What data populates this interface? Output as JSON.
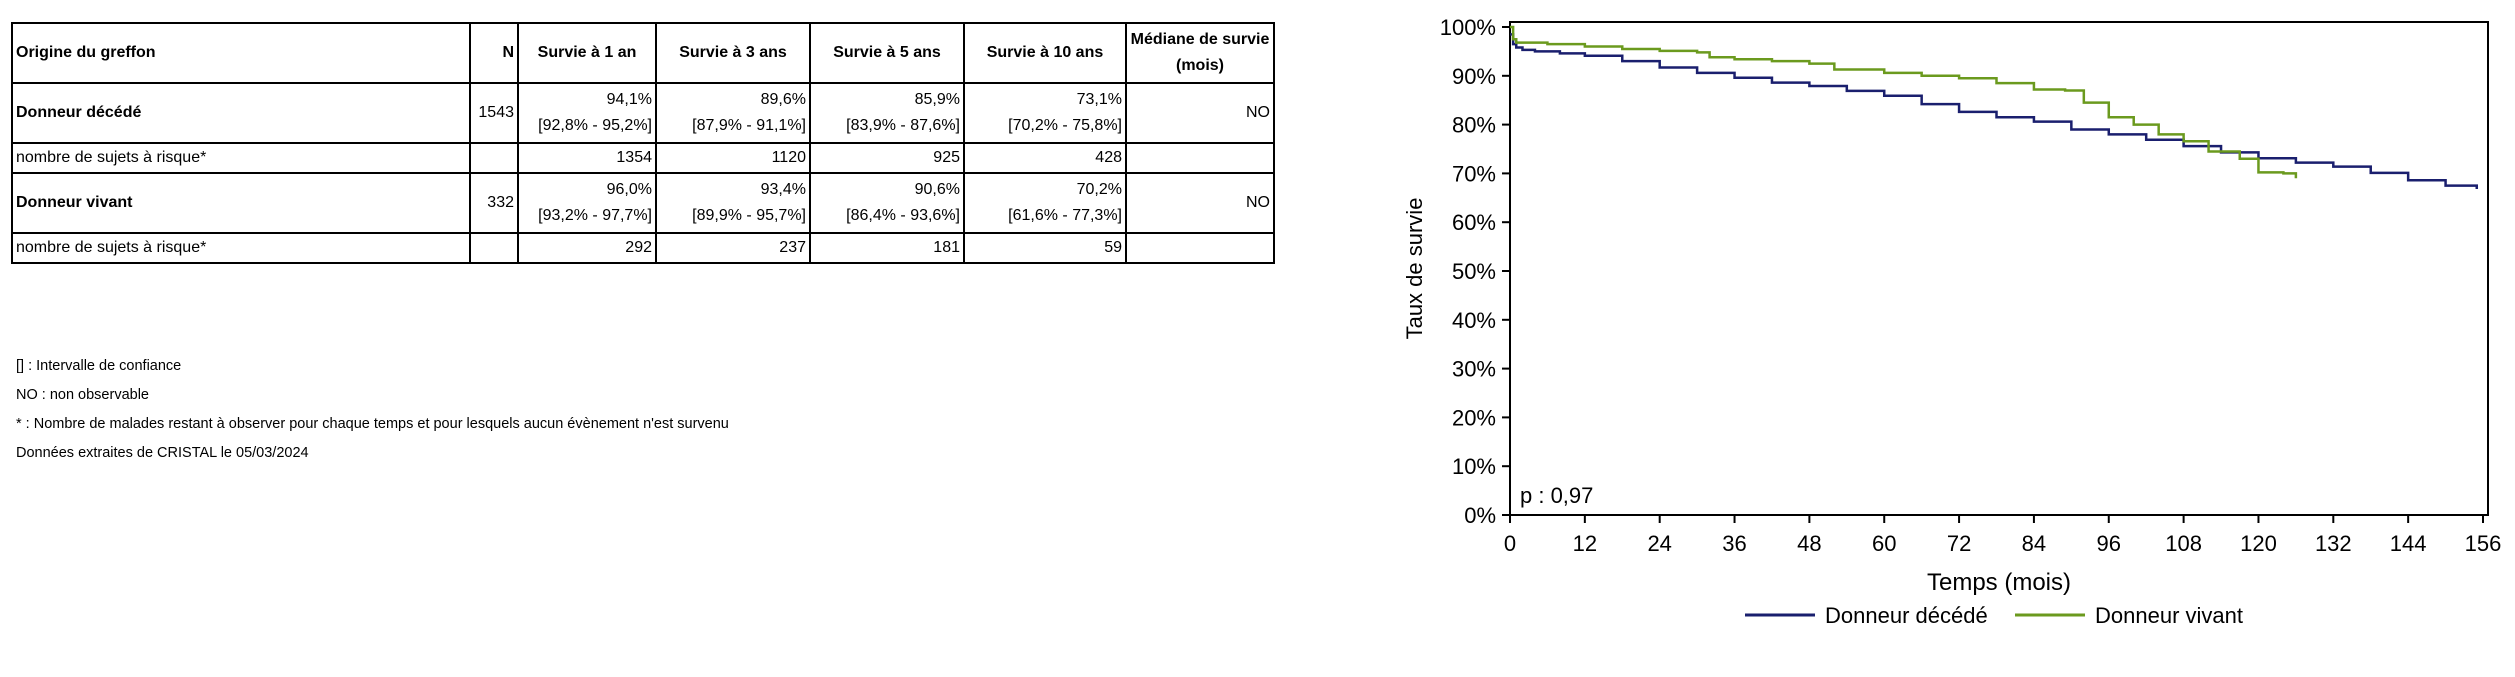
{
  "table": {
    "headers": [
      "Origine du greffon",
      "N",
      "Survie à 1 an",
      "Survie à 3 ans",
      "Survie à 5 ans",
      "Survie à 10 ans",
      "Médiane de survie (mois)"
    ],
    "rows": [
      {
        "label": "Donneur décédé",
        "n": "1543",
        "s1": "94,1%",
        "ci1": "[92,8% - 95,2%]",
        "s3": "89,6%",
        "ci3": "[87,9% - 91,1%]",
        "s5": "85,9%",
        "ci5": "[83,9% - 87,6%]",
        "s10": "73,1%",
        "ci10": "[70,2% - 75,8%]",
        "median": "NO"
      },
      {
        "label": "nombre de sujets à risque*",
        "r1": "1354",
        "r3": "1120",
        "r5": "925",
        "r10": "428"
      },
      {
        "label": "Donneur vivant",
        "n": "332",
        "s1": "96,0%",
        "ci1": "[93,2% - 97,7%]",
        "s3": "93,4%",
        "ci3": "[89,9% - 95,7%]",
        "s5": "90,6%",
        "ci5": "[86,4% - 93,6%]",
        "s10": "70,2%",
        "ci10": "[61,6% - 77,3%]",
        "median": "NO"
      },
      {
        "label": "nombre de sujets à risque*",
        "r1": "292",
        "r3": "237",
        "r5": "181",
        "r10": "59"
      }
    ]
  },
  "notes": [
    "[] : Intervalle de confiance",
    "NO : non observable",
    "* : Nombre de malades restant à observer pour chaque temps et pour lesquels aucun évènement n'est survenu",
    "Données extraites de CRISTAL le 05/03/2024"
  ],
  "chart_data": {
    "type": "line",
    "title": "",
    "xlabel": "Temps (mois)",
    "ylabel": "Taux de survie",
    "xlim": [
      0,
      156
    ],
    "ylim": [
      0,
      100
    ],
    "x_ticks": [
      0,
      12,
      24,
      36,
      48,
      60,
      72,
      84,
      96,
      108,
      120,
      132,
      144,
      156
    ],
    "y_ticks": [
      0,
      10,
      20,
      30,
      40,
      50,
      60,
      70,
      80,
      90,
      100
    ],
    "y_tick_labels": [
      "0%",
      "10%",
      "20%",
      "30%",
      "40%",
      "50%",
      "60%",
      "70%",
      "80%",
      "90%",
      "100%"
    ],
    "annotation": "p : 0,97",
    "legend_position": "bottom",
    "series": [
      {
        "name": "Donneur décédé",
        "color": "#1a1f6e",
        "x": [
          0,
          0.5,
          1,
          2,
          4,
          8,
          12,
          18,
          24,
          30,
          36,
          42,
          48,
          54,
          60,
          66,
          72,
          78,
          84,
          90,
          96,
          102,
          108,
          114,
          120,
          126,
          132,
          138,
          144,
          150,
          155
        ],
        "y": [
          98.5,
          96.5,
          95.8,
          95.3,
          95.0,
          94.6,
          94.1,
          93.0,
          91.7,
          90.6,
          89.6,
          88.6,
          87.9,
          86.9,
          85.9,
          84.2,
          82.6,
          81.5,
          80.6,
          79.0,
          78.0,
          76.9,
          75.6,
          74.3,
          73.1,
          72.2,
          71.4,
          70.1,
          68.6,
          67.5,
          66.8
        ]
      },
      {
        "name": "Donneur vivant",
        "color": "#6b9a1e",
        "x": [
          0,
          0.5,
          1,
          6,
          12,
          18,
          24,
          30,
          32,
          36,
          42,
          48,
          52,
          60,
          66,
          72,
          78,
          84,
          89,
          92,
          96,
          100,
          104,
          108,
          112,
          117,
          120,
          124,
          126
        ],
        "y": [
          100,
          97.5,
          96.8,
          96.5,
          96.0,
          95.5,
          95.1,
          94.8,
          93.8,
          93.4,
          93.0,
          92.5,
          91.3,
          90.6,
          90.0,
          89.5,
          88.5,
          87.2,
          87.0,
          84.5,
          81.5,
          80.0,
          78.0,
          76.6,
          74.5,
          73.0,
          70.2,
          70.0,
          69.0
        ]
      }
    ]
  }
}
